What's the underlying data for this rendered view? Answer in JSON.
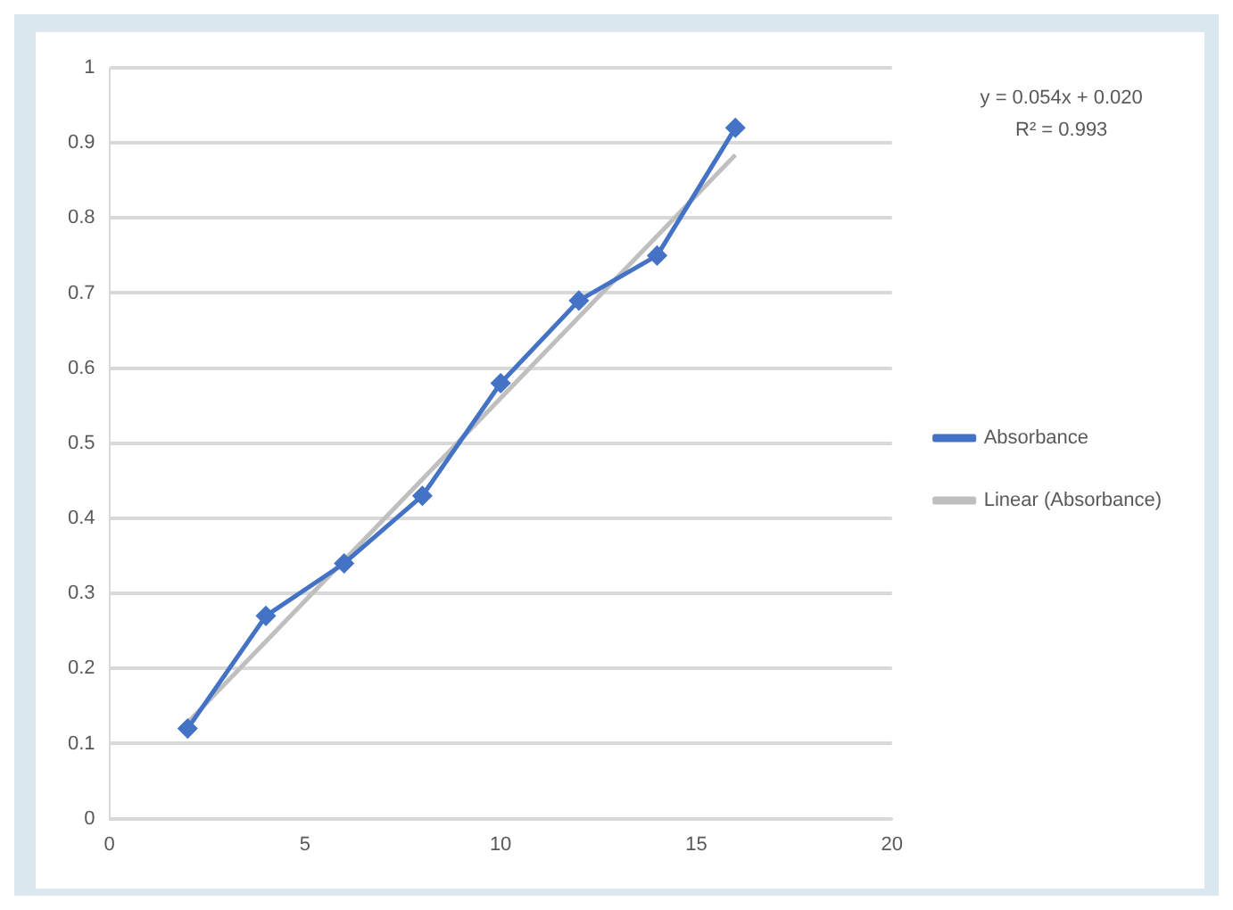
{
  "chart_data": {
    "type": "line",
    "x": [
      2,
      4,
      6,
      8,
      10,
      12,
      14,
      16
    ],
    "series": [
      {
        "name": "Absorbance",
        "color": "#4472c4",
        "values": [
          0.12,
          0.27,
          0.34,
          0.43,
          0.58,
          0.69,
          0.75,
          0.92
        ]
      },
      {
        "name": "Linear (Absorbance)",
        "type": "line",
        "color": "#bfbfbf",
        "x": [
          2,
          16
        ],
        "values": [
          0.128,
          0.884
        ],
        "marker": "none"
      }
    ],
    "xlim": [
      0,
      20
    ],
    "xticks": [
      0,
      5,
      10,
      15,
      20
    ],
    "ylim": [
      0,
      1
    ],
    "yticks": [
      0,
      0.1,
      0.2,
      0.3,
      0.4,
      0.5,
      0.6,
      0.7,
      0.8,
      0.9,
      1
    ],
    "grid": "y",
    "legend": "right",
    "marker": "diamond",
    "line_style": "solid",
    "annotations": [
      "y = 0.054x + 0.020",
      "R² = 0.993"
    ]
  }
}
